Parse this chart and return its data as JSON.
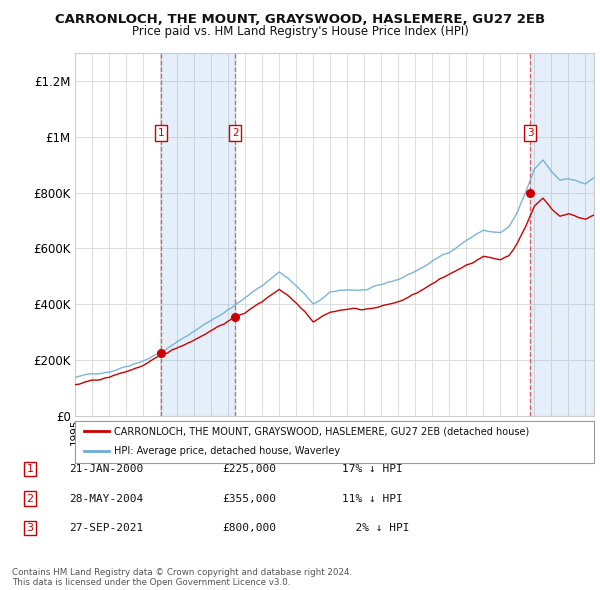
{
  "title": "CARRONLOCH, THE MOUNT, GRAYSWOOD, HASLEMERE, GU27 2EB",
  "subtitle": "Price paid vs. HM Land Registry's House Price Index (HPI)",
  "ylim": [
    0,
    1300000
  ],
  "yticks": [
    0,
    200000,
    400000,
    600000,
    800000,
    1000000,
    1200000
  ],
  "ytick_labels": [
    "£0",
    "£200K",
    "£400K",
    "£600K",
    "£800K",
    "£1M",
    "£1.2M"
  ],
  "hpi_color": "#6baed6",
  "hpi_fill_color": "#d0e8f5",
  "price_color": "#cc0000",
  "sale_marker_color": "#cc0000",
  "vline_color": "#dd4444",
  "background_color": "#ffffff",
  "grid_color": "#dddddd",
  "sale_dates": [
    2000.055,
    2004.41,
    2021.74
  ],
  "sale_prices": [
    225000,
    355000,
    800000
  ],
  "sale_labels": [
    "1",
    "2",
    "3"
  ],
  "legend_sale_label": "CARRONLOCH, THE MOUNT, GRAYSWOOD, HASLEMERE, GU27 2EB (detached house)",
  "legend_hpi_label": "HPI: Average price, detached house, Waverley",
  "table_rows": [
    {
      "num": "1",
      "date": "21-JAN-2000",
      "price": "£225,000",
      "pct": "17% ↓ HPI"
    },
    {
      "num": "2",
      "date": "28-MAY-2004",
      "price": "£355,000",
      "pct": "11% ↓ HPI"
    },
    {
      "num": "3",
      "date": "27-SEP-2021",
      "price": "£800,000",
      "pct": "  2% ↓ HPI"
    }
  ],
  "footer": "Contains HM Land Registry data © Crown copyright and database right 2024.\nThis data is licensed under the Open Government Licence v3.0.",
  "xmin": 1995.0,
  "xmax": 2025.5
}
